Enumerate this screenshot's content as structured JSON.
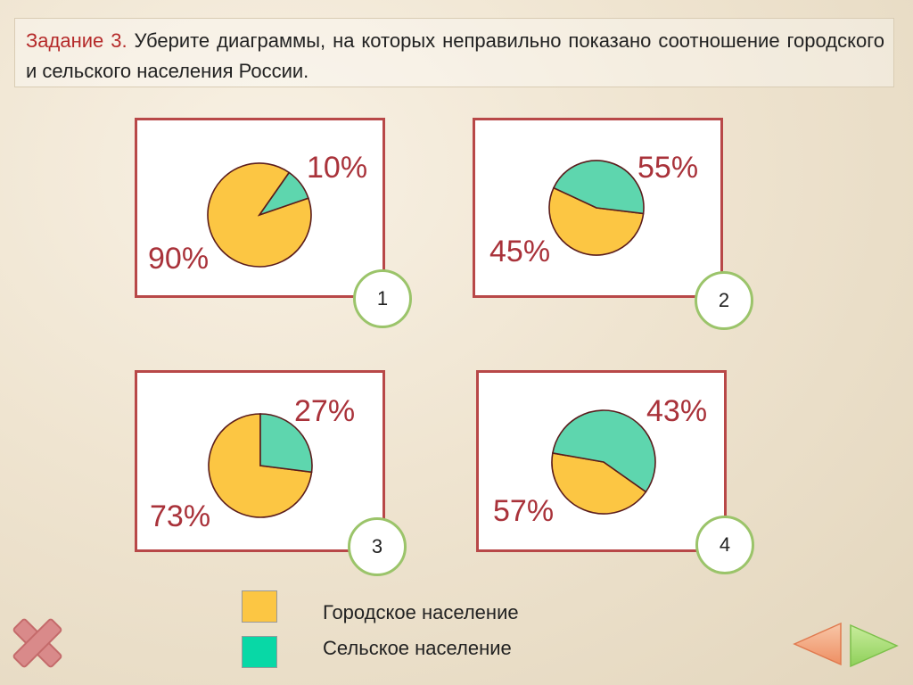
{
  "task": {
    "label": "Задание 3.",
    "text": " Уберите  диаграммы, на которых неправильно показано соотношение городского и сельского населения России."
  },
  "colors": {
    "urban": "#fcc643",
    "rural": "#5ed6ae",
    "card_border": "#b84848",
    "label_text": "#a9323a",
    "legend_urban": "#fcc643",
    "legend_rural": "#08d8a6"
  },
  "charts": [
    {
      "number": "1",
      "rural_label": "10%",
      "urban_label": "90%"
    },
    {
      "number": "2",
      "rural_label": "45%",
      "urban_label": "55%"
    },
    {
      "number": "3",
      "rural_label": "27%",
      "urban_label": "73%"
    },
    {
      "number": "4",
      "rural_label": "57%",
      "urban_label": "43%"
    }
  ],
  "chart_data": [
    {
      "type": "pie",
      "categories": [
        "Городское население",
        "Сельское население"
      ],
      "values": [
        90,
        10
      ],
      "labels": [
        "90%",
        "10%"
      ]
    },
    {
      "type": "pie",
      "categories": [
        "Городское население",
        "Сельское население"
      ],
      "values": [
        55,
        45
      ],
      "labels": [
        "55%",
        "45%"
      ]
    },
    {
      "type": "pie",
      "categories": [
        "Городское население",
        "Сельское население"
      ],
      "values": [
        73,
        27
      ],
      "labels": [
        "73%",
        "27%"
      ]
    },
    {
      "type": "pie",
      "categories": [
        "Городское население",
        "Сельское население"
      ],
      "values": [
        43,
        57
      ],
      "labels": [
        "43%",
        "57%"
      ]
    }
  ],
  "legend": {
    "urban_label": "Городское население",
    "rural_label": "Сельское население"
  },
  "icons": {
    "close": "close-icon",
    "prev": "prev-arrow-icon",
    "next": "next-arrow-icon"
  }
}
